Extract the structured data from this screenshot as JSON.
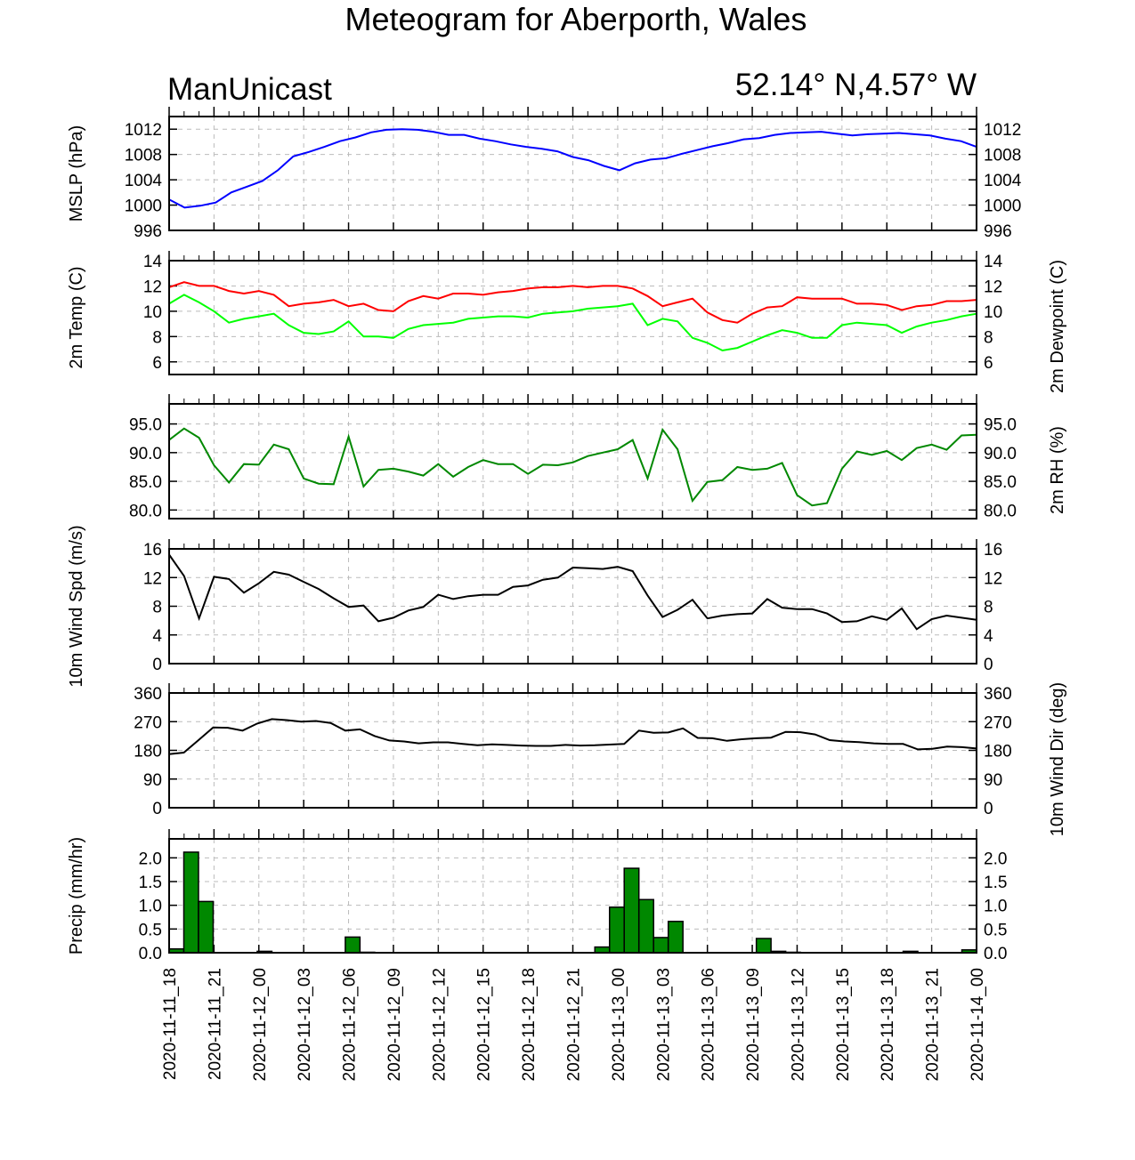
{
  "title": "Meteogram for Aberporth, Wales",
  "model_label": "ManUnicast",
  "location_label": "52.14° N,4.57° W",
  "time_labels": [
    "2020-11-11_18",
    "2020-11-11_21",
    "2020-11-12_00",
    "2020-11-12_03",
    "2020-11-12_06",
    "2020-11-12_09",
    "2020-11-12_12",
    "2020-11-12_15",
    "2020-11-12_18",
    "2020-11-12_21",
    "2020-11-13_00",
    "2020-11-13_03",
    "2020-11-13_06",
    "2020-11-13_09",
    "2020-11-13_12",
    "2020-11-13_15",
    "2020-11-13_18",
    "2020-11-13_21",
    "2020-11-14_00"
  ],
  "colors": {
    "mslp": "#0000ff",
    "temp": "#ff0000",
    "dewpoint": "#00ff00",
    "rh": "#008800",
    "wind": "#000000",
    "precip_fill": "#008800",
    "grid": "#bbbbbb"
  },
  "chart_data": [
    {
      "type": "line",
      "ylabel": "MSLP (hPa)",
      "ylabel_right": "",
      "ylim": [
        996,
        1014
      ],
      "yticks": [
        "996",
        "1000",
        "1004",
        "1008",
        "1012"
      ],
      "ytick_values": [
        996,
        1000,
        1004,
        1008,
        1012
      ],
      "grid": true,
      "series": [
        {
          "color": "#0000ff",
          "values": [
            1000.9,
            999.6,
            999.9,
            1000.4,
            1002.0,
            1002.9,
            1003.8,
            1005.5,
            1007.7,
            1008.4,
            1009.2,
            1010.1,
            1010.7,
            1011.5,
            1011.9,
            1012.0,
            1011.9,
            1011.6,
            1011.1,
            1011.1,
            1010.5,
            1010.1,
            1009.6,
            1009.2,
            1008.9,
            1008.5,
            1007.6,
            1007.1,
            1006.2,
            1005.5,
            1006.6,
            1007.2,
            1007.4,
            1008.1,
            1008.7,
            1009.3,
            1009.8,
            1010.4,
            1010.6,
            1011.1,
            1011.4,
            1011.5,
            1011.6,
            1011.3,
            1011.0,
            1011.2,
            1011.3,
            1011.4,
            1011.2,
            1011.0,
            1010.5,
            1010.1,
            1009.2
          ]
        }
      ]
    },
    {
      "type": "line",
      "ylabel": "2m Temp (C)",
      "ylabel_right": "2m Dewpoint (C)",
      "ylim": [
        5,
        14
      ],
      "yticks": [
        "6",
        "8",
        "10",
        "12",
        "14"
      ],
      "ytick_values": [
        6,
        8,
        10,
        12,
        14
      ],
      "grid": true,
      "series": [
        {
          "color": "#ff0000",
          "values": [
            11.9,
            12.3,
            12.0,
            12.0,
            11.6,
            11.4,
            11.6,
            11.3,
            10.4,
            10.6,
            10.7,
            10.9,
            10.4,
            10.6,
            10.1,
            10.0,
            10.8,
            11.2,
            11.0,
            11.4,
            11.4,
            11.3,
            11.5,
            11.6,
            11.8,
            11.9,
            11.9,
            12.0,
            11.9,
            12.0,
            12.0,
            11.8,
            11.2,
            10.4,
            10.7,
            11.0,
            9.9,
            9.3,
            9.1,
            9.8,
            10.3,
            10.4,
            11.1,
            11.0,
            11.0,
            11.0,
            10.6,
            10.6,
            10.5,
            10.1,
            10.4,
            10.5,
            10.8,
            10.8,
            10.9
          ]
        },
        {
          "color": "#00ff00",
          "values": [
            10.6,
            11.3,
            10.7,
            10.0,
            9.1,
            9.4,
            9.6,
            9.8,
            8.9,
            8.3,
            8.2,
            8.4,
            9.2,
            8.0,
            8.0,
            7.9,
            8.6,
            8.9,
            9.0,
            9.1,
            9.4,
            9.5,
            9.6,
            9.6,
            9.5,
            9.8,
            9.9,
            10.0,
            10.2,
            10.3,
            10.4,
            10.6,
            8.9,
            9.4,
            9.2,
            7.9,
            7.5,
            6.9,
            7.1,
            7.6,
            8.1,
            8.5,
            8.3,
            7.9,
            7.9,
            8.9,
            9.1,
            9.0,
            8.9,
            8.3,
            8.8,
            9.1,
            9.3,
            9.6,
            9.8
          ]
        }
      ]
    },
    {
      "type": "line",
      "ylabel": "",
      "ylabel_right": "2m RH (%)",
      "ylim": [
        78.5,
        98.5
      ],
      "yticks": [
        "80.0",
        "85.0",
        "90.0",
        "95.0"
      ],
      "ytick_values": [
        80,
        85,
        90,
        95
      ],
      "grid": true,
      "series": [
        {
          "color": "#008800",
          "values": [
            92.2,
            94.2,
            92.6,
            87.8,
            84.8,
            88.0,
            87.9,
            91.4,
            90.6,
            85.5,
            84.6,
            84.5,
            92.8,
            84.1,
            87.0,
            87.2,
            86.7,
            86.0,
            88.0,
            85.8,
            87.5,
            88.7,
            88.0,
            88.0,
            86.3,
            87.9,
            87.8,
            88.3,
            89.4,
            90.0,
            90.6,
            92.2,
            85.5,
            94.0,
            90.6,
            81.6,
            84.9,
            85.2,
            87.5,
            87.0,
            87.2,
            88.2,
            82.6,
            80.8,
            81.2,
            87.2,
            90.2,
            89.6,
            90.3,
            88.7,
            90.8,
            91.4,
            90.5,
            93.0,
            93.1
          ]
        }
      ]
    },
    {
      "type": "line",
      "ylabel": "10m Wind Spd (m/s)",
      "ylabel_right": "",
      "ylim": [
        0,
        16
      ],
      "yticks": [
        "0",
        "4",
        "8",
        "12",
        "16"
      ],
      "ytick_values": [
        0,
        4,
        8,
        12,
        16
      ],
      "grid": true,
      "series": [
        {
          "color": "#000000",
          "values": [
            15.2,
            12.2,
            6.3,
            12.1,
            11.8,
            9.9,
            11.2,
            12.8,
            12.4,
            11.4,
            10.4,
            9.1,
            7.9,
            8.1,
            5.9,
            6.4,
            7.4,
            7.9,
            9.6,
            9.0,
            9.4,
            9.6,
            9.6,
            10.7,
            10.9,
            11.7,
            12.0,
            13.4,
            13.3,
            13.2,
            13.5,
            12.9,
            9.5,
            6.5,
            7.5,
            8.9,
            6.3,
            6.7,
            6.9,
            7.0,
            9.0,
            7.8,
            7.6,
            7.6,
            7.0,
            5.8,
            5.9,
            6.6,
            6.1,
            7.7,
            4.8,
            6.2,
            6.7,
            6.4,
            6.1
          ]
        }
      ]
    },
    {
      "type": "line",
      "ylabel": "",
      "ylabel_right": "10m Wind Dir (deg)",
      "ylim": [
        0,
        360
      ],
      "yticks": [
        "0",
        "90",
        "180",
        "270",
        "360"
      ],
      "ytick_values": [
        0,
        90,
        180,
        270,
        360
      ],
      "grid": true,
      "series": [
        {
          "color": "#000000",
          "values": [
            168,
            173,
            212,
            252,
            251,
            242,
            264,
            278,
            275,
            270,
            272,
            266,
            242,
            246,
            225,
            211,
            208,
            202,
            205,
            205,
            200,
            196,
            199,
            197,
            195,
            194,
            194,
            197,
            195,
            196,
            198,
            200,
            242,
            235,
            236,
            249,
            219,
            218,
            210,
            215,
            218,
            220,
            238,
            237,
            230,
            212,
            208,
            206,
            202,
            200,
            200,
            183,
            185,
            192,
            190,
            186
          ]
        }
      ]
    },
    {
      "type": "bar",
      "ylabel": "Precip (mm/hr)",
      "ylabel_right": "",
      "ylim": [
        0,
        2.4
      ],
      "yticks": [
        "0.0",
        "0.5",
        "1.0",
        "1.5",
        "2.0"
      ],
      "ytick_values": [
        0,
        0.5,
        1.0,
        1.5,
        2.0
      ],
      "grid": true,
      "series": [
        {
          "color": "#008800",
          "values": [
            0.08,
            2.12,
            1.08,
            0,
            0,
            0,
            0.03,
            0,
            0,
            0,
            0,
            0,
            0.33,
            0.01,
            0,
            0,
            0,
            0,
            0,
            0,
            0,
            0,
            0,
            0,
            0,
            0,
            0,
            0,
            0,
            0.12,
            0.96,
            1.78,
            1.12,
            0.32,
            0.66,
            0,
            0,
            0,
            0,
            0,
            0.3,
            0.03,
            0.01,
            0,
            0,
            0,
            0,
            0,
            0,
            0,
            0.03,
            0,
            0,
            0,
            0.06
          ]
        }
      ]
    }
  ]
}
